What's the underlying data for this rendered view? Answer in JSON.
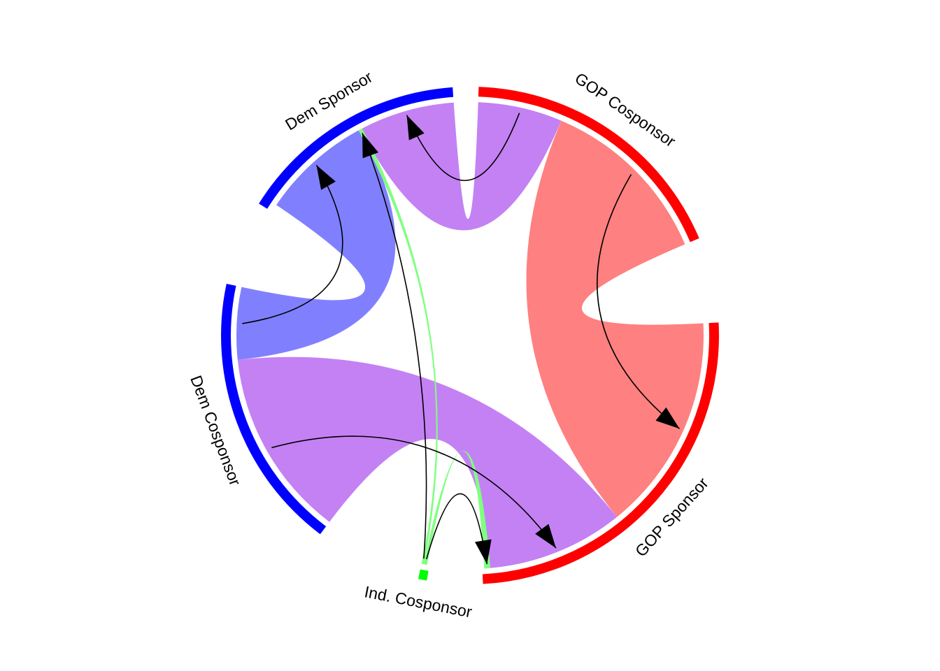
{
  "chart_data": {
    "type": "chord",
    "title": "",
    "sectors": [
      {
        "id": "gop_cosponsor",
        "label": "GOP Cosponsor",
        "color": "#ff0000"
      },
      {
        "id": "gop_sponsor",
        "label": "GOP Sponsor",
        "color": "#ff0000"
      },
      {
        "id": "ind_cosponsor",
        "label": "Ind. Cosponsor",
        "color": "#00ff00"
      },
      {
        "id": "dem_cosponsor",
        "label": "Dem Cosponsor",
        "color": "#0000ff"
      },
      {
        "id": "dem_sponsor",
        "label": "Dem Sponsor",
        "color": "#0000ff"
      }
    ],
    "links": [
      {
        "from": "gop_cosponsor",
        "to": "gop_sponsor",
        "color": "#ff8080"
      },
      {
        "from": "gop_cosponsor",
        "to": "dem_sponsor",
        "color": "#c481f3"
      },
      {
        "from": "dem_cosponsor",
        "to": "gop_sponsor",
        "color": "#c481f3"
      },
      {
        "from": "dem_cosponsor",
        "to": "dem_sponsor",
        "color": "#8080ff"
      },
      {
        "from": "ind_cosponsor",
        "to": "gop_sponsor",
        "color": "#80ff80"
      },
      {
        "from": "ind_cosponsor",
        "to": "dem_sponsor",
        "color": "#80ff80"
      }
    ]
  }
}
